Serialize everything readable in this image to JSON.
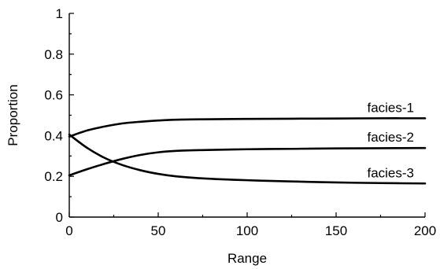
{
  "chart_data": {
    "type": "line",
    "title": "",
    "xlabel": "Range",
    "ylabel": "Proportion",
    "xlim": [
      0,
      200
    ],
    "ylim": [
      0,
      1
    ],
    "grid": false,
    "x_ticks": [
      {
        "value": 0,
        "label": "0"
      },
      {
        "value": 50,
        "label": "50"
      },
      {
        "value": 100,
        "label": "100"
      },
      {
        "value": 150,
        "label": "150"
      },
      {
        "value": 200,
        "label": "200"
      }
    ],
    "y_ticks": [
      {
        "value": 0,
        "label": "0"
      },
      {
        "value": 0.2,
        "label": "0.2"
      },
      {
        "value": 0.4,
        "label": "0.4"
      },
      {
        "value": 0.6,
        "label": "0.6"
      },
      {
        "value": 0.8,
        "label": "0.8"
      },
      {
        "value": 1,
        "label": "1"
      }
    ],
    "x": [
      0,
      10,
      20,
      30,
      40,
      50,
      60,
      75,
      100,
      125,
      150,
      175,
      200
    ],
    "series": [
      {
        "name": "facies-1",
        "color": "#000000",
        "values": [
          0.395,
          0.425,
          0.445,
          0.46,
          0.468,
          0.474,
          0.478,
          0.48,
          0.482,
          0.483,
          0.484,
          0.485,
          0.485
        ]
      },
      {
        "name": "facies-2",
        "color": "#000000",
        "values": [
          0.205,
          0.235,
          0.262,
          0.286,
          0.305,
          0.318,
          0.325,
          0.329,
          0.333,
          0.335,
          0.337,
          0.338,
          0.339
        ]
      },
      {
        "name": "facies-3",
        "color": "#000000",
        "values": [
          0.405,
          0.34,
          0.29,
          0.255,
          0.23,
          0.212,
          0.2,
          0.19,
          0.181,
          0.175,
          0.17,
          0.167,
          0.165
        ]
      }
    ]
  }
}
